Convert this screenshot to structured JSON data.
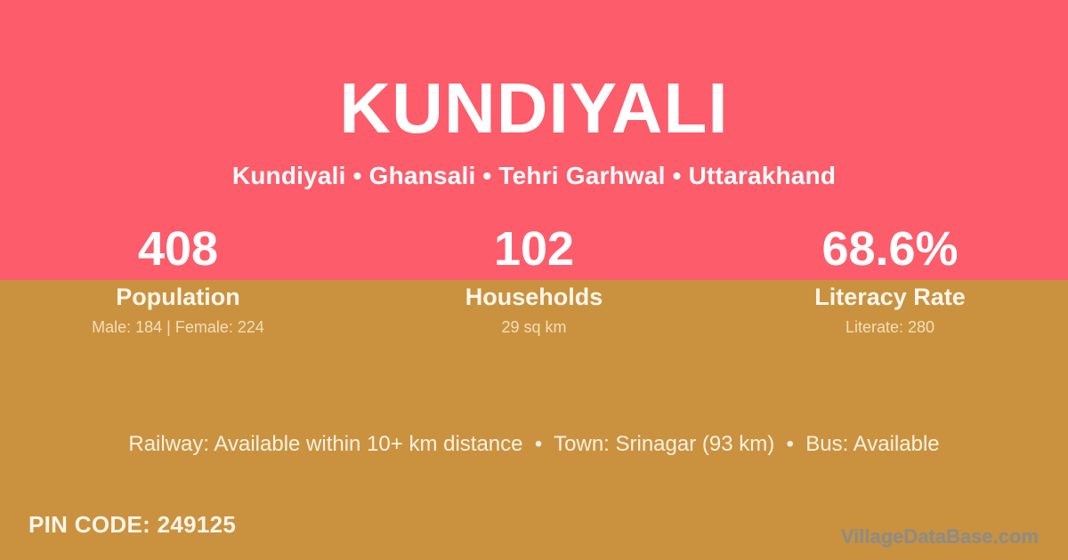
{
  "header": {
    "title": "KUNDIYALI",
    "breadcrumb": "Kundiyali • Ghansali • Tehri Garhwal • Uttarakhand"
  },
  "stats": [
    {
      "value": "408",
      "label": "Population",
      "detail": "Male: 184 | Female: 224"
    },
    {
      "value": "102",
      "label": "Households",
      "detail": "29 sq km"
    },
    {
      "value": "68.6%",
      "label": "Literacy Rate",
      "detail": "Literate: 280"
    }
  ],
  "amenities": {
    "text": "Railway: Available within 10+ km distance  •  Town: Srinagar (93 km)  •  Bus: Available"
  },
  "footer": {
    "pin_code": "PIN CODE: 249125",
    "watermark": "VillageDataBase.com"
  },
  "colors": {
    "top_background": "#FD5C6B",
    "bottom_background": "#CA923F",
    "primary_text": "#FFFFFF",
    "label_text": "#FDF6EC",
    "detail_text": "#F2DFBC",
    "watermark_text": "#8D8C86"
  }
}
